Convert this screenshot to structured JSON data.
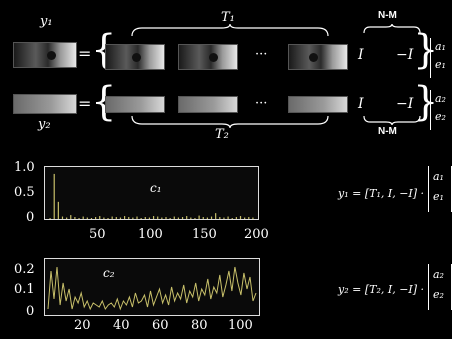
{
  "top_eq": {
    "y1_label": "y₁",
    "y2_label": "y₂",
    "equals": "=",
    "T1_label": "T₁",
    "T2_label": "T₂",
    "ellipsis": "···",
    "I": "I",
    "minus_I": "−I",
    "NM": "N-M",
    "a1": "a₁",
    "e1": "e₁",
    "a2": "a₂",
    "e2": "e₂"
  },
  "chart_data": [
    {
      "type": "bar",
      "series_label": "c₁",
      "x_ticks": [
        "50",
        "100",
        "150",
        "200"
      ],
      "y_ticks": [
        "1.0",
        "0.5",
        "0"
      ],
      "xlim": [
        0,
        200
      ],
      "ylim": [
        0,
        1.0
      ],
      "values": [
        0.02,
        0.92,
        0.35,
        0.05,
        0.03,
        0.08,
        0.04,
        0.02,
        0.05,
        0.03,
        0.02,
        0.04,
        0.06,
        0.03,
        0.02,
        0.05,
        0.04,
        0.03,
        0.06,
        0.04,
        0.03,
        0.05,
        0.02,
        0.04,
        0.03,
        0.06,
        0.05,
        0.03,
        0.04,
        0.02,
        0.05,
        0.03,
        0.04,
        0.06,
        0.03,
        0.02,
        0.07,
        0.04,
        0.03,
        0.05,
        0.12,
        0.04,
        0.03,
        0.05,
        0.02,
        0.04,
        0.06,
        0.03,
        0.04,
        0.03
      ]
    },
    {
      "type": "line",
      "series_label": "c₂",
      "x_ticks": [
        "20",
        "40",
        "60",
        "80",
        "100"
      ],
      "y_ticks": [
        "0.2",
        "0.1",
        "0"
      ],
      "xlim": [
        0,
        110
      ],
      "ylim": [
        0,
        0.25
      ],
      "values": [
        0.02,
        0.21,
        0.07,
        0.23,
        0.04,
        0.15,
        0.06,
        0.12,
        0.02,
        0.08,
        0.05,
        0.1,
        0.03,
        0.06,
        0.02,
        0.05,
        0.04,
        0.03,
        0.06,
        0.02,
        0.04,
        0.05,
        0.03,
        0.07,
        0.02,
        0.06,
        0.04,
        0.08,
        0.03,
        0.1,
        0.05,
        0.06,
        0.09,
        0.03,
        0.11,
        0.04,
        0.08,
        0.12,
        0.05,
        0.09,
        0.04,
        0.13,
        0.06,
        0.1,
        0.07,
        0.14,
        0.05,
        0.11,
        0.08,
        0.15,
        0.06,
        0.12,
        0.09,
        0.17,
        0.07,
        0.13,
        0.1,
        0.19,
        0.08,
        0.14,
        0.21,
        0.11,
        0.23,
        0.15,
        0.09,
        0.2,
        0.12,
        0.18,
        0.06,
        0.1
      ]
    }
  ],
  "bottom_eq": {
    "eq1_lhs": "y₁ = [T₁, I, −I] ·",
    "eq2_lhs": "y₂ = [T₂, I, −I] ·",
    "a1": "a₁",
    "e1": "e₁",
    "a2": "a₂",
    "e2": "e₂"
  },
  "colors": {
    "background": "#000000",
    "plot_bg": "#0a0a0a",
    "curve": "#c8c06a",
    "text": "#ffffff"
  }
}
